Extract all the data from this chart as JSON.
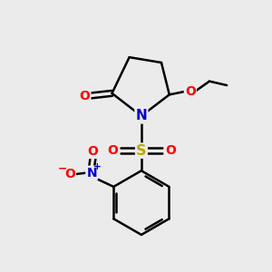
{
  "background_color": "#ebebeb",
  "atom_colors": {
    "C": "#000000",
    "N": "#0000cc",
    "O": "#ff0000",
    "S": "#bbaa00",
    "H": "#000000"
  },
  "bond_color": "#000000",
  "bond_width": 1.8,
  "fig_size": [
    3.0,
    3.0
  ],
  "dpi": 100
}
